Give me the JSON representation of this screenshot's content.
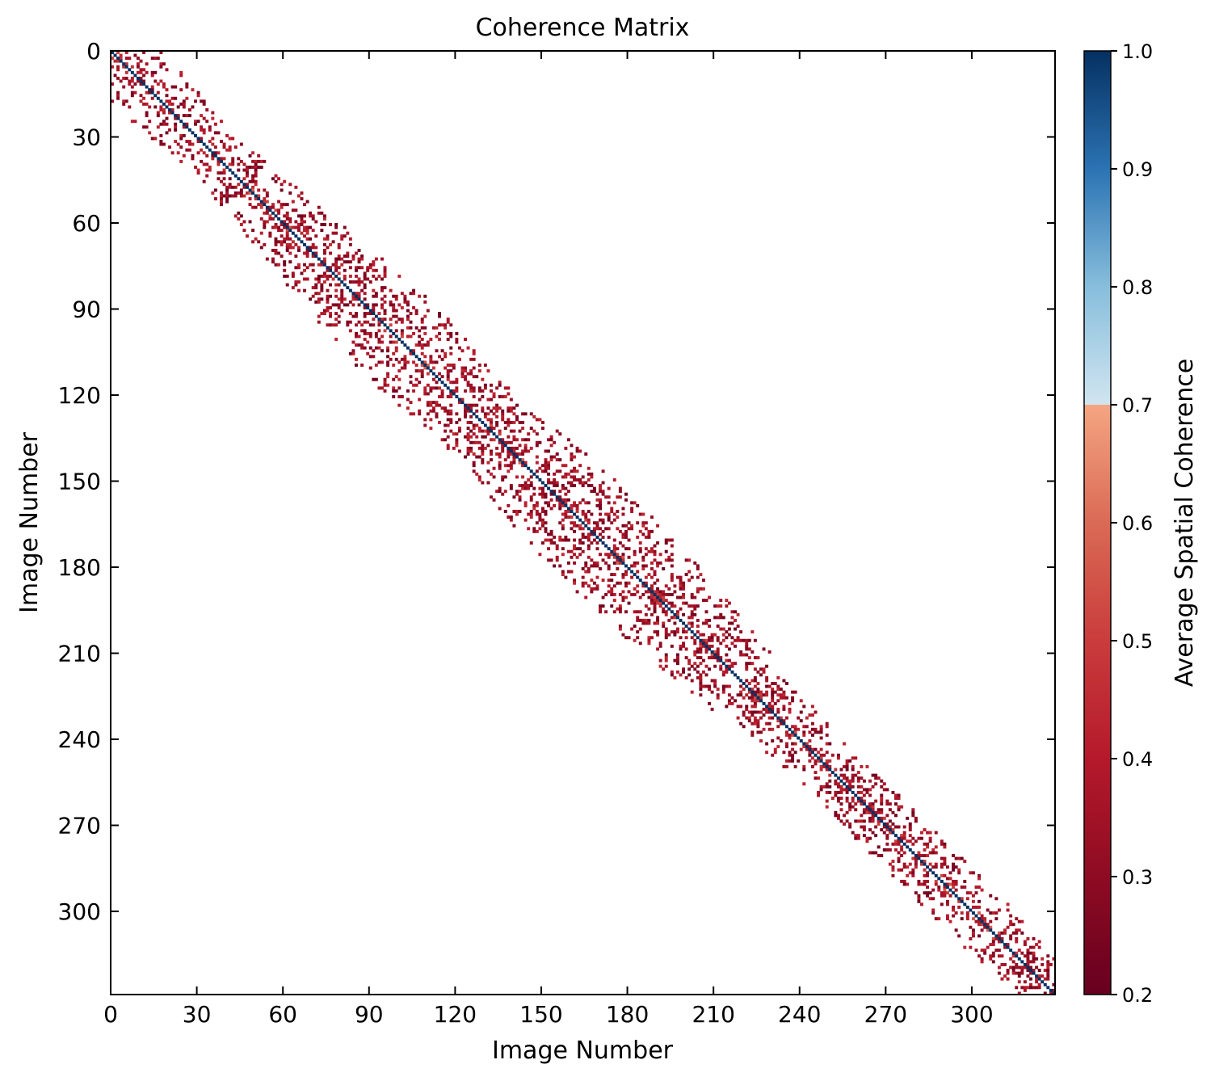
{
  "chart_data": {
    "type": "heatmap",
    "title": "Coherence Matrix",
    "xlabel": "Image Number",
    "ylabel": "Image Number",
    "n_images": 329,
    "xlim": [
      0,
      329
    ],
    "ylim": [
      329,
      0
    ],
    "x_ticks": [
      0,
      30,
      60,
      90,
      120,
      150,
      180,
      210,
      240,
      270,
      300
    ],
    "y_ticks": [
      0,
      30,
      60,
      90,
      120,
      150,
      180,
      210,
      240,
      270,
      300
    ],
    "colorbar": {
      "label": "Average Spatial Coherence",
      "range": [
        0.2,
        1.0
      ],
      "ticks": [
        "0.2",
        "0.3",
        "0.4",
        "0.5",
        "0.6",
        "0.7",
        "0.8",
        "0.9",
        "1.0"
      ],
      "stops": [
        {
          "value": 0.2,
          "color": "#67001f"
        },
        {
          "value": 0.3,
          "color": "#8e0b22"
        },
        {
          "value": 0.4,
          "color": "#b5192b"
        },
        {
          "value": 0.5,
          "color": "#c93c3c"
        },
        {
          "value": 0.6,
          "color": "#da6a55"
        },
        {
          "value": 0.7,
          "color": "#f4a582"
        },
        {
          "value": 0.7001,
          "color": "#d1e5f0"
        },
        {
          "value": 0.8,
          "color": "#87bedc"
        },
        {
          "value": 0.9,
          "color": "#2b73b3"
        },
        {
          "value": 1.0,
          "color": "#053061"
        }
      ]
    },
    "diagonal_value": 1.0,
    "band_halfwidth": {
      "points": [
        [
          0,
          18
        ],
        [
          30,
          14
        ],
        [
          60,
          20
        ],
        [
          90,
          25
        ],
        [
          120,
          21
        ],
        [
          150,
          27
        ],
        [
          180,
          25
        ],
        [
          210,
          20
        ],
        [
          240,
          14
        ],
        [
          270,
          16
        ],
        [
          300,
          15
        ],
        [
          329,
          20
        ]
      ]
    },
    "off_diagonal_value_range": [
      0.22,
      0.45
    ],
    "near_diagonal_boost": 0.15,
    "fill_fraction": 0.22
  }
}
